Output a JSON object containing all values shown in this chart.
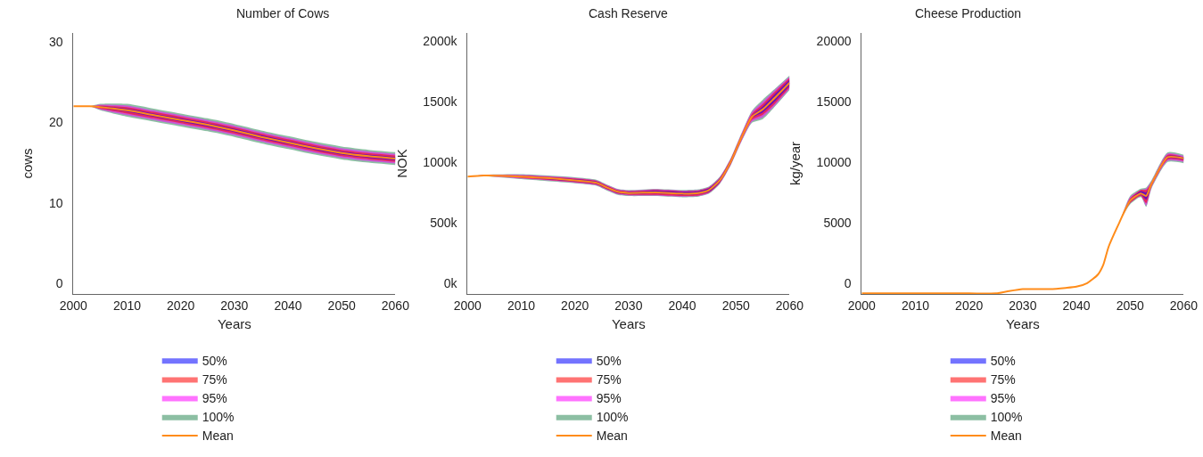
{
  "chart_data": [
    {
      "type": "line",
      "title": "Number of Cows",
      "xlabel": "Years",
      "ylabel": "cows",
      "xlim": [
        2000,
        2060
      ],
      "xticks": [
        2000,
        2010,
        2020,
        2030,
        2040,
        2050,
        2060
      ],
      "ylim": [
        -1.3,
        31.1
      ],
      "yticks": [
        0,
        10,
        20,
        30
      ],
      "legend": "bottom",
      "marker": "none",
      "x": [
        2000,
        2003,
        2005,
        2010,
        2015,
        2020,
        2025,
        2030,
        2035,
        2040,
        2045,
        2050,
        2055,
        2060
      ],
      "series": [
        {
          "name": "50%",
          "color": "#0000ff",
          "values": [
            null,
            null,
            null,
            null,
            null,
            null,
            null,
            null,
            null,
            null,
            null,
            null,
            null,
            null
          ],
          "lower": [
            22,
            22,
            21.8,
            21.3,
            20.7,
            20.1,
            19.5,
            18.8,
            18,
            17.3,
            16.6,
            16,
            15.6,
            15.3
          ],
          "upper": [
            22,
            22,
            22,
            21.7,
            21.1,
            20.5,
            19.9,
            19.2,
            18.4,
            17.7,
            17,
            16.4,
            16,
            15.7
          ]
        },
        {
          "name": "75%",
          "color": "#ff0000",
          "values": [
            null,
            null,
            null,
            null,
            null,
            null,
            null,
            null,
            null,
            null,
            null,
            null,
            null,
            null
          ],
          "lower": [
            22,
            22,
            21.7,
            21.1,
            20.5,
            19.9,
            19.3,
            18.6,
            17.8,
            17.1,
            16.4,
            15.8,
            15.4,
            15.1
          ],
          "upper": [
            22,
            22,
            22.1,
            21.9,
            21.3,
            20.7,
            20.1,
            19.4,
            18.6,
            17.9,
            17.2,
            16.6,
            16.2,
            15.9
          ]
        },
        {
          "name": "95%",
          "color": "#ff00ff",
          "values": [
            null,
            null,
            null,
            null,
            null,
            null,
            null,
            null,
            null,
            null,
            null,
            null,
            null,
            null
          ],
          "lower": [
            22,
            22,
            21.6,
            20.9,
            20.3,
            19.7,
            19.1,
            18.4,
            17.6,
            16.9,
            16.2,
            15.6,
            15.2,
            14.9
          ],
          "upper": [
            22,
            22,
            22.2,
            22.1,
            21.5,
            20.9,
            20.3,
            19.6,
            18.8,
            18.1,
            17.4,
            16.8,
            16.4,
            16.1
          ]
        },
        {
          "name": "100%",
          "color": "#2e8b57",
          "values": [
            null,
            null,
            null,
            null,
            null,
            null,
            null,
            null,
            null,
            null,
            null,
            null,
            null,
            null
          ],
          "lower": [
            22,
            22,
            21.5,
            20.7,
            20.1,
            19.5,
            18.9,
            18.2,
            17.4,
            16.7,
            16,
            15.4,
            15,
            14.7
          ],
          "upper": [
            22,
            22,
            22.3,
            22.3,
            21.7,
            21.1,
            20.5,
            19.8,
            19,
            18.3,
            17.6,
            17,
            16.6,
            16.3
          ]
        },
        {
          "name": "Mean",
          "color": "#ff8c1a",
          "values": [
            22,
            22,
            21.9,
            21.5,
            20.9,
            20.3,
            19.7,
            19,
            18.2,
            17.5,
            16.8,
            16.2,
            15.8,
            15.5
          ]
        }
      ]
    },
    {
      "type": "line",
      "title": "Cash Reserve",
      "xlabel": "Years",
      "ylabel": "NOK",
      "xlim": [
        2000,
        2060
      ],
      "xticks": [
        2000,
        2010,
        2020,
        2030,
        2040,
        2050,
        2060
      ],
      "ylim": [
        -88000,
        2066000
      ],
      "yticks": [
        {
          "value": 0,
          "label": "0k"
        },
        {
          "value": 500000,
          "label": "500k"
        },
        {
          "value": 1000000,
          "label": "1000k"
        },
        {
          "value": 1500000,
          "label": "1500k"
        },
        {
          "value": 2000000,
          "label": "2000k"
        }
      ],
      "legend": "bottom",
      "marker": "none",
      "x": [
        2000,
        2003,
        2010,
        2020,
        2024,
        2026,
        2028,
        2030,
        2035,
        2040,
        2043,
        2045,
        2047,
        2049,
        2051,
        2053,
        2055,
        2057,
        2060
      ],
      "series": [
        {
          "name": "50%",
          "color": "#0000ff",
          "values": [
            null,
            null,
            null,
            null,
            null,
            null,
            null,
            null,
            null,
            null,
            null,
            null,
            null,
            null,
            null,
            null,
            null,
            null,
            null
          ],
          "lower": [
            880000,
            890000,
            875000,
            840000,
            820000,
            780000,
            745000,
            735000,
            740000,
            730000,
            735000,
            755000,
            835000,
            985000,
            1190000,
            1365000,
            1410000,
            1490000,
            1630000
          ],
          "upper": [
            880000,
            890000,
            885000,
            860000,
            840000,
            800000,
            765000,
            755000,
            765000,
            755000,
            760000,
            785000,
            865000,
            1015000,
            1210000,
            1385000,
            1460000,
            1550000,
            1680000
          ]
        },
        {
          "name": "75%",
          "color": "#ff0000",
          "values": [
            null,
            null,
            null,
            null,
            null,
            null,
            null,
            null,
            null,
            null,
            null,
            null,
            null,
            null,
            null,
            null,
            null,
            null,
            null
          ],
          "lower": [
            880000,
            890000,
            870000,
            835000,
            815000,
            775000,
            740000,
            730000,
            730000,
            720000,
            725000,
            750000,
            830000,
            980000,
            1180000,
            1350000,
            1390000,
            1470000,
            1615000
          ],
          "upper": [
            880000,
            890000,
            890000,
            865000,
            845000,
            805000,
            770000,
            760000,
            770000,
            760000,
            765000,
            790000,
            870000,
            1020000,
            1220000,
            1400000,
            1480000,
            1570000,
            1695000
          ]
        },
        {
          "name": "95%",
          "color": "#ff00ff",
          "values": [
            null,
            null,
            null,
            null,
            null,
            null,
            null,
            null,
            null,
            null,
            null,
            null,
            null,
            null,
            null,
            null,
            null,
            null,
            null
          ],
          "lower": [
            880000,
            885000,
            865000,
            830000,
            810000,
            770000,
            735000,
            725000,
            725000,
            715000,
            720000,
            745000,
            825000,
            975000,
            1170000,
            1335000,
            1370000,
            1455000,
            1605000
          ],
          "upper": [
            880000,
            895000,
            895000,
            870000,
            850000,
            810000,
            775000,
            765000,
            775000,
            765000,
            770000,
            795000,
            875000,
            1025000,
            1230000,
            1415000,
            1500000,
            1585000,
            1705000
          ]
        },
        {
          "name": "100%",
          "color": "#2e8b57",
          "values": [
            null,
            null,
            null,
            null,
            null,
            null,
            null,
            null,
            null,
            null,
            null,
            null,
            null,
            null,
            null,
            null,
            null,
            null,
            null
          ],
          "lower": [
            880000,
            885000,
            860000,
            825000,
            805000,
            765000,
            730000,
            720000,
            720000,
            710000,
            715000,
            740000,
            820000,
            970000,
            1165000,
            1325000,
            1355000,
            1445000,
            1595000
          ],
          "upper": [
            880000,
            895000,
            900000,
            875000,
            855000,
            815000,
            780000,
            770000,
            780000,
            770000,
            775000,
            800000,
            880000,
            1030000,
            1235000,
            1425000,
            1515000,
            1595000,
            1715000
          ]
        },
        {
          "name": "Mean",
          "color": "#ff8c1a",
          "values": [
            880000,
            890000,
            880000,
            850000,
            830000,
            790000,
            755000,
            745000,
            750000,
            740000,
            745000,
            770000,
            850000,
            1000000,
            1200000,
            1375000,
            1435000,
            1520000,
            1655000
          ]
        }
      ]
    },
    {
      "type": "line",
      "title": "Cheese Production",
      "xlabel": "Years",
      "ylabel": "kg/year",
      "xlim": [
        2000,
        2060
      ],
      "xticks": [
        2000,
        2010,
        2020,
        2030,
        2040,
        2050,
        2060
      ],
      "ylim": [
        -900,
        20660
      ],
      "yticks": [
        0,
        5000,
        10000,
        15000,
        20000
      ],
      "legend": "bottom",
      "marker": "none",
      "x": [
        2000,
        2010,
        2020,
        2025,
        2027,
        2030,
        2035,
        2038,
        2040,
        2042,
        2044,
        2045,
        2046,
        2048,
        2050,
        2052,
        2053,
        2054,
        2057,
        2060
      ],
      "series": [
        {
          "name": "50%",
          "color": "#0000ff",
          "values": [
            null,
            null,
            null,
            null,
            null,
            null,
            null,
            null,
            null,
            null,
            null,
            null,
            null,
            null,
            null,
            null,
            null,
            null,
            null,
            null
          ],
          "lower": [
            -850,
            -850,
            -850,
            -850,
            -700,
            -500,
            -500,
            -400,
            -300,
            0,
            700,
            1500,
            3000,
            5000,
            6700,
            7300,
            6900,
            8100,
            10300,
            10200
          ],
          "upper": [
            -850,
            -850,
            -850,
            -850,
            -700,
            -500,
            -500,
            -400,
            -300,
            0,
            700,
            1500,
            3000,
            5000,
            6900,
            7600,
            7500,
            8300,
            10500,
            10400
          ]
        },
        {
          "name": "75%",
          "color": "#ff0000",
          "values": [
            null,
            null,
            null,
            null,
            null,
            null,
            null,
            null,
            null,
            null,
            null,
            null,
            null,
            null,
            null,
            null,
            null,
            null,
            null,
            null
          ],
          "lower": [
            -850,
            -850,
            -850,
            -850,
            -700,
            -500,
            -500,
            -400,
            -300,
            0,
            700,
            1500,
            3000,
            5000,
            6600,
            7200,
            6600,
            8000,
            10200,
            10100
          ],
          "upper": [
            -850,
            -850,
            -850,
            -850,
            -700,
            -500,
            -500,
            -400,
            -300,
            0,
            700,
            1500,
            3000,
            5000,
            7000,
            7700,
            7700,
            8300,
            10600,
            10400
          ]
        },
        {
          "name": "95%",
          "color": "#ff00ff",
          "values": [
            null,
            null,
            null,
            null,
            null,
            null,
            null,
            null,
            null,
            null,
            null,
            null,
            null,
            null,
            null,
            null,
            null,
            null,
            null,
            null
          ],
          "lower": [
            -850,
            -850,
            -850,
            -850,
            -700,
            -500,
            -500,
            -400,
            -300,
            0,
            700,
            1500,
            3000,
            5000,
            6600,
            7200,
            6400,
            7900,
            10100,
            10000
          ],
          "upper": [
            -850,
            -850,
            -850,
            -850,
            -700,
            -500,
            -500,
            -400,
            -300,
            0,
            700,
            1500,
            3000,
            5000,
            7100,
            7700,
            7800,
            8400,
            10700,
            10500
          ]
        },
        {
          "name": "100%",
          "color": "#2e8b57",
          "values": [
            null,
            null,
            null,
            null,
            null,
            null,
            null,
            null,
            null,
            null,
            null,
            null,
            null,
            null,
            null,
            null,
            null,
            null,
            null,
            null
          ],
          "lower": [
            -850,
            -850,
            -850,
            -850,
            -700,
            -500,
            -500,
            -400,
            -300,
            0,
            700,
            1500,
            3000,
            5000,
            6500,
            7100,
            6300,
            7800,
            10000,
            9900
          ],
          "upper": [
            -850,
            -850,
            -850,
            -850,
            -700,
            -500,
            -500,
            -400,
            -300,
            0,
            700,
            1500,
            3000,
            5000,
            7200,
            7800,
            7900,
            8500,
            10800,
            10600
          ]
        },
        {
          "name": "Mean",
          "color": "#ff8c1a",
          "values": [
            -850,
            -850,
            -850,
            -850,
            -700,
            -500,
            -500,
            -400,
            -300,
            0,
            700,
            1500,
            3000,
            5000,
            6800,
            7400,
            7200,
            8200,
            10400,
            10300
          ]
        }
      ]
    }
  ]
}
